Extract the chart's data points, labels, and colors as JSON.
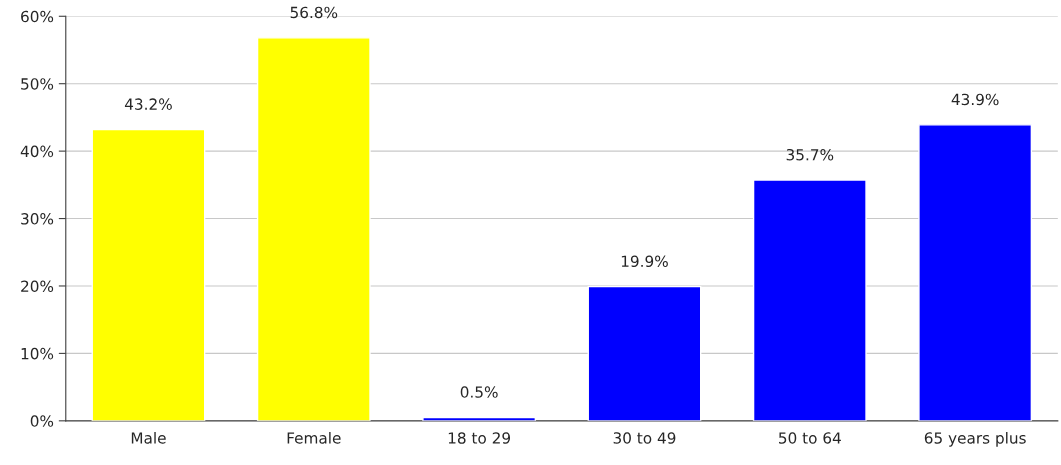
{
  "chart_data": {
    "type": "bar",
    "categories": [
      "Male",
      "Female",
      "18 to 29",
      "30 to 49",
      "50 to 64",
      "65 years plus"
    ],
    "values": [
      43.2,
      56.8,
      0.5,
      19.9,
      35.7,
      43.9
    ],
    "colors": [
      "#ffff00",
      "#ffff00",
      "#0000ff",
      "#0000ff",
      "#0000ff",
      "#0000ff"
    ],
    "value_labels": [
      "43.2%",
      "56.8%",
      "0.5%",
      "19.9%",
      "35.7%",
      "43.9%"
    ],
    "ylim": [
      0,
      60
    ],
    "yticks": [
      {
        "value": 0,
        "label": "0%"
      },
      {
        "value": 10,
        "label": "10%"
      },
      {
        "value": 20,
        "label": "20%"
      },
      {
        "value": 30,
        "label": "30%"
      },
      {
        "value": 40,
        "label": "40%"
      },
      {
        "value": 50,
        "label": "50%"
      },
      {
        "value": 60,
        "label": "60%"
      }
    ],
    "grid": "y",
    "legend": false
  }
}
